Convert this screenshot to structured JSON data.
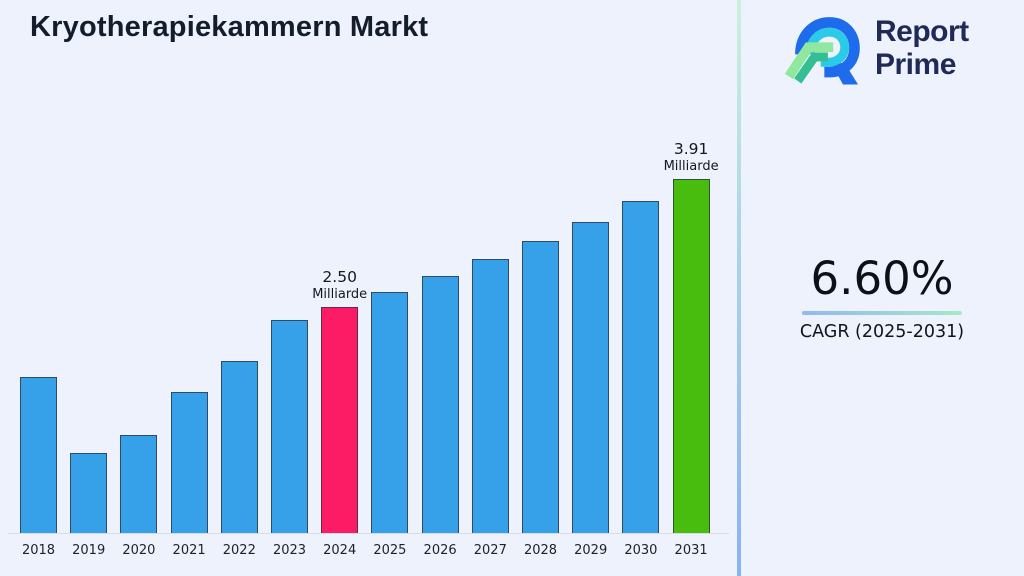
{
  "page": {
    "background": "#EDF2FC"
  },
  "header": {
    "title": "Kryotherapiekammern Markt"
  },
  "logo": {
    "line1": "Report",
    "line2": "Prime",
    "text_color": "#1F2A56",
    "mark_colors": {
      "blue": "#1E6BEB",
      "cyan": "#2BCBE8",
      "light_green": "#8FE89E",
      "teal": "#34BE92"
    }
  },
  "cagr_panel": {
    "value": "6.60%",
    "label": "CAGR (2025-2031)"
  },
  "chart_data": {
    "type": "bar",
    "title": "Kryotherapiekammern Markt",
    "xlabel": "",
    "ylabel": "",
    "unit": "Milliarde",
    "ylim": [
      0,
      4.3
    ],
    "grid": false,
    "legend": "none",
    "categories": [
      "2018",
      "2019",
      "2020",
      "2021",
      "2022",
      "2023",
      "2024",
      "2025",
      "2026",
      "2027",
      "2028",
      "2029",
      "2030",
      "2031"
    ],
    "values": [
      1.72,
      0.88,
      1.08,
      1.56,
      1.9,
      2.35,
      2.5,
      2.66,
      2.84,
      3.03,
      3.23,
      3.44,
      3.67,
      3.91
    ],
    "colors": {
      "default": "#36A1E9",
      "highlight_base_year": "#FC1C66",
      "highlight_forecast_year": "#49BD0D"
    },
    "highlighted_bars": {
      "2024": "highlight_base_year",
      "2031": "highlight_forecast_year"
    },
    "annotations": [
      {
        "year": "2024",
        "value_label": "2.50",
        "unit_label": "Milliarde"
      },
      {
        "year": "2031",
        "value_label": "3.91",
        "unit_label": "Milliarde"
      }
    ]
  }
}
